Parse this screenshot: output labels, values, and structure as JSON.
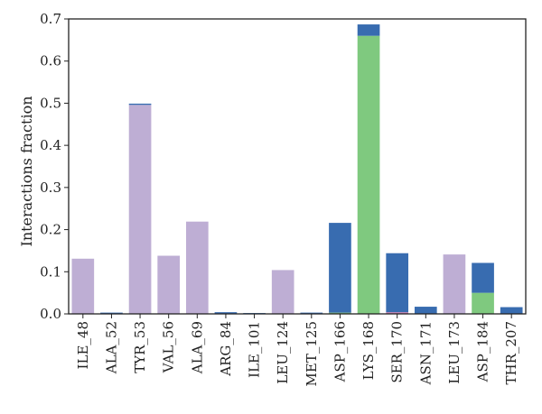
{
  "chart_data": {
    "type": "bar",
    "stacked": true,
    "title": "",
    "xlabel": "",
    "ylabel": "Interactions fraction",
    "ylim": [
      0,
      0.7
    ],
    "yticks": [
      0.0,
      0.1,
      0.2,
      0.3,
      0.4,
      0.5,
      0.6,
      0.7
    ],
    "ytick_labels": [
      "0.0",
      "0.1",
      "0.2",
      "0.3",
      "0.4",
      "0.5",
      "0.6",
      "0.7"
    ],
    "grid": false,
    "legend": "none",
    "categories": [
      "ILE_48",
      "ALA_52",
      "TYR_53",
      "VAL_56",
      "ALA_69",
      "ARG_84",
      "ILE_101",
      "LEU_124",
      "MET_125",
      "ASP_166",
      "LYS_168",
      "SER_170",
      "ASN_171",
      "LEU_173",
      "ASP_184",
      "THR_207"
    ],
    "series": [
      {
        "color": "#7fc97f",
        "values": [
          0,
          0,
          0,
          0,
          0,
          0,
          0,
          0,
          0,
          0.003,
          0.66,
          0,
          0,
          0,
          0.05,
          0
        ]
      },
      {
        "color": "#c97fb4",
        "values": [
          0,
          0,
          0,
          0,
          0,
          0,
          0,
          0,
          0,
          0,
          0,
          0.004,
          0,
          0,
          0,
          0
        ]
      },
      {
        "color": "#beaed4",
        "values": [
          0.131,
          0,
          0.496,
          0.138,
          0.219,
          0,
          0,
          0.104,
          0,
          0,
          0,
          0,
          0,
          0.141,
          0,
          0
        ]
      },
      {
        "color": "#386cb0",
        "values": [
          0,
          0.003,
          0.003,
          0,
          0,
          0.004,
          0.002,
          0,
          0.003,
          0.213,
          0.027,
          0.14,
          0.017,
          0,
          0.071,
          0.016
        ]
      }
    ]
  }
}
